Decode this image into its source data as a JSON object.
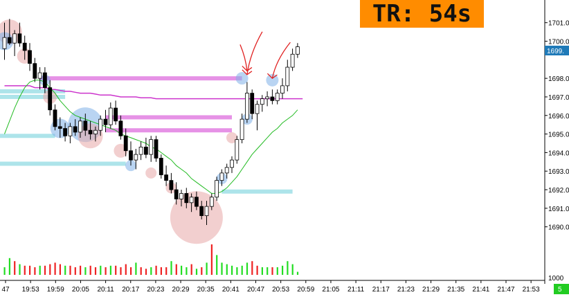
{
  "timer": {
    "label": "TR:",
    "value": "54s",
    "color": "#ff8c00"
  },
  "price_tag": "1699.",
  "volume_label": "1000",
  "corner_badge": "5",
  "colors": {
    "up_candle": "#ffffff",
    "down_candle": "#000000",
    "wick": "#000000",
    "ma_slow": "#cc33cc",
    "ma_fast": "#22bb22",
    "zone_pink": "#e27fe2",
    "zone_cyan": "#9fdfe6",
    "bubble_blue": "#7fb0e8",
    "bubble_red": "#e8a8a8",
    "vol_up": "#22dd22",
    "vol_down": "#ee2222",
    "price_tag_bg": "#1f7ab8",
    "annotation": "#e02020",
    "badge": "#22cc22"
  },
  "chart_data": {
    "type": "candlestick",
    "title": "",
    "y_ticks": [
      "1701.0",
      "1700.0",
      "1698.0",
      "1697.0",
      "1696.0",
      "1695.0",
      "1694.0",
      "1693.0",
      "1692.0",
      "1691.0",
      "1690.0"
    ],
    "x_ticks": [
      "47",
      "19:53",
      "19:59",
      "20:05",
      "20:11",
      "20:17",
      "20:23",
      "20:29",
      "20:35",
      "20:41",
      "20:47",
      "20:53",
      "20:59",
      "21:05",
      "21:11",
      "21:17",
      "21:23",
      "21:29",
      "21:35",
      "21:41",
      "21:47",
      "21:53"
    ],
    "ylim": [
      1689.8,
      1701.4
    ],
    "candles": [
      [
        1699.6,
        1701.0,
        1699.0,
        1700.2
      ],
      [
        1700.2,
        1701.2,
        1699.8,
        1699.9
      ],
      [
        1699.9,
        1700.6,
        1699.2,
        1700.4
      ],
      [
        1700.4,
        1701.0,
        1699.7,
        1699.9
      ],
      [
        1699.9,
        1700.3,
        1699.0,
        1699.5
      ],
      [
        1699.5,
        1699.9,
        1698.4,
        1698.8
      ],
      [
        1698.8,
        1699.1,
        1697.8,
        1698.0
      ],
      [
        1698.0,
        1698.6,
        1697.4,
        1698.3
      ],
      [
        1698.3,
        1698.6,
        1697.2,
        1697.5
      ],
      [
        1697.5,
        1697.9,
        1696.0,
        1696.3
      ],
      [
        1696.3,
        1696.6,
        1695.2,
        1695.4
      ],
      [
        1695.4,
        1695.9,
        1694.8,
        1695.3
      ],
      [
        1695.3,
        1695.6,
        1694.6,
        1694.9
      ],
      [
        1694.9,
        1695.6,
        1694.5,
        1695.4
      ],
      [
        1695.4,
        1695.8,
        1694.9,
        1695.1
      ],
      [
        1695.1,
        1695.9,
        1694.8,
        1695.7
      ],
      [
        1695.7,
        1696.1,
        1694.9,
        1695.2
      ],
      [
        1695.2,
        1695.7,
        1694.7,
        1695.0
      ],
      [
        1695.0,
        1695.4,
        1694.6,
        1695.2
      ],
      [
        1695.2,
        1696.0,
        1694.9,
        1695.8
      ],
      [
        1695.8,
        1696.3,
        1695.1,
        1695.5
      ],
      [
        1695.5,
        1696.7,
        1695.3,
        1696.4
      ],
      [
        1696.4,
        1696.8,
        1695.5,
        1695.7
      ],
      [
        1695.7,
        1696.0,
        1694.7,
        1694.9
      ],
      [
        1694.9,
        1695.3,
        1693.8,
        1694.1
      ],
      [
        1694.1,
        1694.6,
        1693.3,
        1693.6
      ],
      [
        1693.6,
        1694.2,
        1693.1,
        1693.9
      ],
      [
        1693.9,
        1694.6,
        1693.6,
        1694.3
      ],
      [
        1694.3,
        1694.8,
        1693.7,
        1693.9
      ],
      [
        1693.9,
        1694.9,
        1693.5,
        1694.7
      ],
      [
        1694.7,
        1694.9,
        1693.5,
        1693.7
      ],
      [
        1693.7,
        1693.9,
        1692.6,
        1692.8
      ],
      [
        1692.8,
        1693.3,
        1692.2,
        1692.5
      ],
      [
        1692.5,
        1692.9,
        1691.8,
        1692.0
      ],
      [
        1692.0,
        1692.4,
        1691.2,
        1691.5
      ],
      [
        1691.5,
        1692.0,
        1691.1,
        1691.8
      ],
      [
        1691.8,
        1692.1,
        1691.0,
        1691.3
      ],
      [
        1691.3,
        1691.8,
        1690.8,
        1691.6
      ],
      [
        1691.6,
        1691.9,
        1690.9,
        1691.1
      ],
      [
        1691.1,
        1691.4,
        1690.4,
        1690.6
      ],
      [
        1690.6,
        1691.4,
        1690.1,
        1691.1
      ],
      [
        1691.1,
        1691.8,
        1690.9,
        1691.6
      ],
      [
        1691.6,
        1692.7,
        1691.4,
        1692.5
      ],
      [
        1692.5,
        1693.1,
        1692.2,
        1692.9
      ],
      [
        1692.9,
        1693.4,
        1692.6,
        1693.2
      ],
      [
        1693.2,
        1693.8,
        1692.9,
        1693.6
      ],
      [
        1693.6,
        1694.9,
        1693.4,
        1694.7
      ],
      [
        1694.7,
        1696.1,
        1694.5,
        1695.8
      ],
      [
        1695.8,
        1697.8,
        1695.6,
        1697.2
      ],
      [
        1697.2,
        1697.4,
        1695.8,
        1696.1
      ],
      [
        1696.1,
        1696.8,
        1695.2,
        1696.6
      ],
      [
        1696.6,
        1697.1,
        1696.2,
        1696.9
      ],
      [
        1696.9,
        1697.3,
        1696.5,
        1697.0
      ],
      [
        1697.0,
        1697.4,
        1696.6,
        1696.8
      ],
      [
        1696.8,
        1697.4,
        1696.6,
        1697.2
      ],
      [
        1697.2,
        1698.0,
        1696.9,
        1697.6
      ],
      [
        1697.6,
        1699.0,
        1697.3,
        1698.6
      ],
      [
        1698.6,
        1699.6,
        1698.4,
        1699.3
      ],
      [
        1699.3,
        1699.9,
        1699.1,
        1699.7
      ]
    ],
    "volume": [
      [
        10,
        1
      ],
      [
        22,
        1
      ],
      [
        18,
        0
      ],
      [
        14,
        1
      ],
      [
        12,
        0
      ],
      [
        12,
        0
      ],
      [
        10,
        0
      ],
      [
        12,
        1
      ],
      [
        12,
        0
      ],
      [
        14,
        0
      ],
      [
        16,
        0
      ],
      [
        14,
        0
      ],
      [
        12,
        1
      ],
      [
        12,
        0
      ],
      [
        10,
        0
      ],
      [
        12,
        0
      ],
      [
        10,
        1
      ],
      [
        12,
        0
      ],
      [
        10,
        0
      ],
      [
        12,
        1
      ],
      [
        10,
        0
      ],
      [
        12,
        1
      ],
      [
        12,
        0
      ],
      [
        10,
        0
      ],
      [
        14,
        0
      ],
      [
        10,
        0
      ],
      [
        16,
        1
      ],
      [
        10,
        0
      ],
      [
        8,
        0
      ],
      [
        10,
        1
      ],
      [
        12,
        0
      ],
      [
        10,
        0
      ],
      [
        10,
        0
      ],
      [
        18,
        1
      ],
      [
        14,
        0
      ],
      [
        12,
        1
      ],
      [
        10,
        1
      ],
      [
        14,
        0
      ],
      [
        8,
        1
      ],
      [
        10,
        0
      ],
      [
        16,
        1
      ],
      [
        40,
        0
      ],
      [
        26,
        1
      ],
      [
        16,
        1
      ],
      [
        14,
        1
      ],
      [
        12,
        1
      ],
      [
        10,
        1
      ],
      [
        12,
        1
      ],
      [
        16,
        1
      ],
      [
        18,
        0
      ],
      [
        12,
        0
      ],
      [
        10,
        1
      ],
      [
        10,
        1
      ],
      [
        10,
        0
      ],
      [
        10,
        1
      ],
      [
        12,
        1
      ],
      [
        18,
        1
      ],
      [
        14,
        1
      ],
      [
        4,
        1
      ]
    ],
    "ma_slow": [
      1697.6,
      1697.6,
      1697.6,
      1697.6,
      1697.6,
      1697.6,
      1697.5,
      1697.5,
      1697.5,
      1697.4,
      1697.4,
      1697.35,
      1697.3,
      1697.3,
      1697.25,
      1697.2,
      1697.2,
      1697.2,
      1697.15,
      1697.1,
      1697.1,
      1697.1,
      1697.05,
      1697.0,
      1697.0,
      1697.0,
      1697.0,
      1696.95,
      1696.95,
      1696.95,
      1696.9,
      1696.9,
      1696.9,
      1696.9,
      1696.9,
      1696.9,
      1696.9,
      1696.9,
      1696.9,
      1696.9,
      1696.9,
      1696.9,
      1696.9,
      1696.9,
      1696.9,
      1696.9,
      1696.9,
      1696.9,
      1696.9,
      1696.9,
      1696.9,
      1696.9,
      1696.9,
      1696.9,
      1696.9,
      1696.9,
      1696.9,
      1696.9,
      1696.9
    ],
    "ma_fast": [
      1695.0,
      1695.7,
      1696.4,
      1697.0,
      1697.5,
      1697.8,
      1697.9,
      1697.9,
      1697.8,
      1697.5,
      1697.2,
      1696.8,
      1696.5,
      1696.2,
      1696.0,
      1695.9,
      1695.8,
      1695.7,
      1695.6,
      1695.5,
      1695.4,
      1695.3,
      1695.2,
      1695.0,
      1694.9,
      1694.8,
      1694.7,
      1694.6,
      1694.5,
      1694.3,
      1694.2,
      1694.0,
      1693.8,
      1693.6,
      1693.3,
      1693.1,
      1692.9,
      1692.6,
      1692.4,
      1692.2,
      1692.0,
      1691.8,
      1691.8,
      1691.9,
      1692.1,
      1692.4,
      1692.7,
      1693.1,
      1693.5,
      1693.9,
      1694.2,
      1694.5,
      1694.8,
      1695.1,
      1695.3,
      1695.6,
      1695.8,
      1696.0,
      1696.3
    ],
    "zones": [
      {
        "kind": "pink",
        "from": 7,
        "to": 47,
        "y": 1698.0
      },
      {
        "kind": "pink",
        "from": 20,
        "to": 45,
        "y": 1695.9
      },
      {
        "kind": "pink",
        "from": 20,
        "to": 45,
        "y": 1695.2
      },
      {
        "kind": "cyan",
        "from": -5,
        "to": 12,
        "y": 1697.3
      },
      {
        "kind": "cyan",
        "from": -5,
        "to": 12,
        "y": 1697.0
      },
      {
        "kind": "cyan",
        "from": -5,
        "to": 10,
        "y": 1694.9
      },
      {
        "kind": "cyan",
        "from": -5,
        "to": 24,
        "y": 1693.4
      },
      {
        "kind": "cyan",
        "from": 43,
        "to": 57,
        "y": 1691.9
      }
    ],
    "bubbles": [
      {
        "kind": "red",
        "i": 1,
        "y": 1700.5,
        "r": 18
      },
      {
        "kind": "blue",
        "i": 0,
        "y": 1700.0,
        "r": 13
      },
      {
        "kind": "red",
        "i": 4,
        "y": 1699.2,
        "r": 11
      },
      {
        "kind": "blue",
        "i": 8,
        "y": 1697.9,
        "r": 8
      },
      {
        "kind": "red",
        "i": 9,
        "y": 1697.0,
        "r": 10
      },
      {
        "kind": "blue",
        "i": 11,
        "y": 1695.3,
        "r": 14
      },
      {
        "kind": "blue",
        "i": 16,
        "y": 1695.5,
        "r": 25
      },
      {
        "kind": "red",
        "i": 17,
        "y": 1694.9,
        "r": 18
      },
      {
        "kind": "red",
        "i": 23,
        "y": 1694.1,
        "r": 10
      },
      {
        "kind": "blue",
        "i": 25,
        "y": 1693.3,
        "r": 8
      },
      {
        "kind": "red",
        "i": 29,
        "y": 1692.9,
        "r": 8
      },
      {
        "kind": "red",
        "i": 33,
        "y": 1692.1,
        "r": 8
      },
      {
        "kind": "red",
        "i": 38,
        "y": 1690.5,
        "r": 38
      },
      {
        "kind": "blue",
        "i": 43,
        "y": 1692.6,
        "r": 8
      },
      {
        "kind": "red",
        "i": 45,
        "y": 1694.8,
        "r": 8
      },
      {
        "kind": "blue",
        "i": 47,
        "y": 1698.0,
        "r": 9
      },
      {
        "kind": "blue",
        "i": 48,
        "y": 1695.8,
        "r": 8
      },
      {
        "kind": "blue",
        "i": 53,
        "y": 1697.9,
        "r": 9
      }
    ],
    "arrows": [
      {
        "i": 48,
        "y": 1698.4,
        "dx": -10,
        "dy": -38
      },
      {
        "i": 48,
        "y": 1698.2,
        "dx": 22,
        "dy": -62
      },
      {
        "i": 53,
        "y": 1698.0,
        "dx": 26,
        "dy": -52
      }
    ]
  }
}
